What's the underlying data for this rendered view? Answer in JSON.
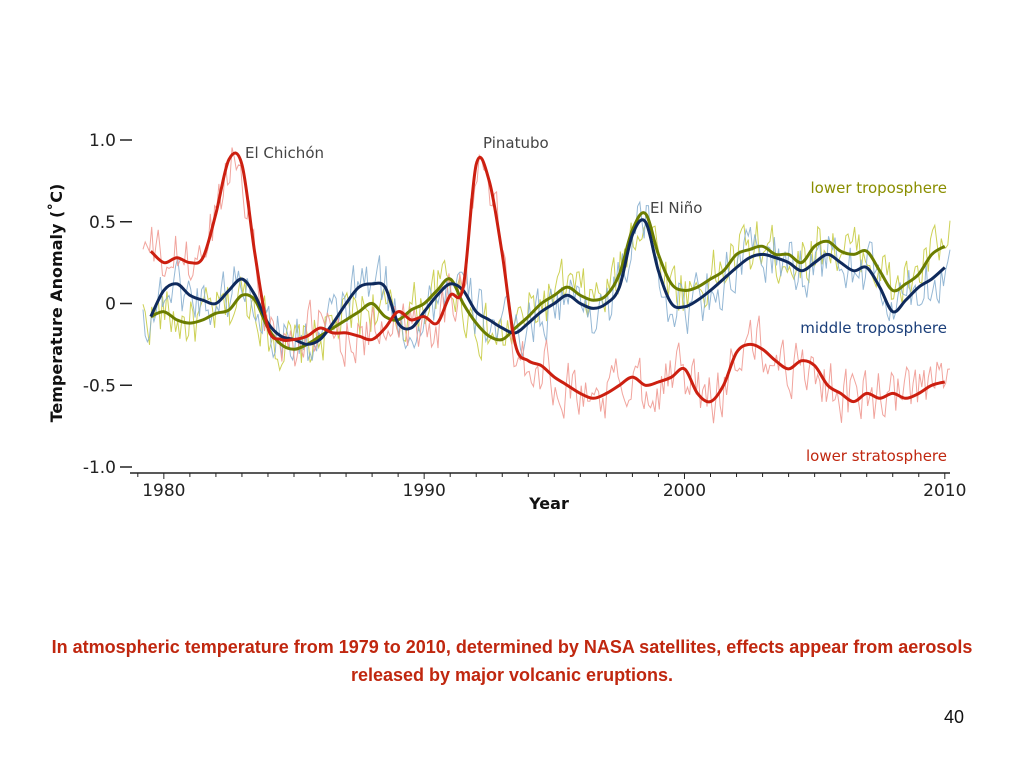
{
  "slide": {
    "caption": "In atmospheric temperature from 1979 to 2010, determined by NASA satellites, effects appear from aerosols released by major volcanic eruptions.",
    "page_number": "40"
  },
  "chart_data": {
    "type": "line",
    "title": "",
    "xlabel": "Year",
    "ylabel": "Temperature Anomaly (˚C)",
    "xlim": [
      1978.7,
      2010.2
    ],
    "ylim": [
      -1.0,
      1.0
    ],
    "x_ticks": [
      1980,
      1990,
      2000,
      2010
    ],
    "y_ticks": [
      {
        "value": 1.0,
        "label": "1.0"
      },
      {
        "value": 0.5,
        "label": "0.5"
      },
      {
        "value": 0,
        "label": "0"
      },
      {
        "value": -0.5,
        "label": "-0.5"
      },
      {
        "value": -1.0,
        "label": "-1.0"
      }
    ],
    "grid": false,
    "annotations": [
      {
        "text": "El Chichón",
        "x": 1982.3,
        "y": 0.93
      },
      {
        "text": "Pinatubo",
        "x": 1991.2,
        "y": 0.95
      },
      {
        "text": "El Niño",
        "x": 1998.7,
        "y": 0.57
      }
    ],
    "series": [
      {
        "name": "lower troposphere",
        "color": "#6b7d00",
        "raw_color": "#c8cc44",
        "label_color": "#8a8e00",
        "x": [
          1979.5,
          1980.0,
          1980.5,
          1981.0,
          1981.5,
          1982.0,
          1982.5,
          1983.0,
          1983.5,
          1984.0,
          1984.5,
          1985.0,
          1985.5,
          1986.0,
          1986.5,
          1987.0,
          1987.5,
          1988.0,
          1988.5,
          1989.0,
          1989.5,
          1990.0,
          1990.5,
          1991.0,
          1991.5,
          1992.0,
          1992.5,
          1993.0,
          1993.5,
          1994.0,
          1994.5,
          1995.0,
          1995.5,
          1996.0,
          1996.5,
          1997.0,
          1997.5,
          1998.0,
          1998.5,
          1999.0,
          1999.5,
          2000.0,
          2000.5,
          2001.0,
          2001.5,
          2002.0,
          2002.5,
          2003.0,
          2003.5,
          2004.0,
          2004.5,
          2005.0,
          2005.5,
          2006.0,
          2006.5,
          2007.0,
          2007.5,
          2008.0,
          2008.5,
          2009.0,
          2009.5,
          2010.0
        ],
        "values": [
          -0.08,
          -0.05,
          -0.1,
          -0.12,
          -0.1,
          -0.06,
          -0.04,
          0.05,
          0.02,
          -0.15,
          -0.25,
          -0.28,
          -0.25,
          -0.2,
          -0.15,
          -0.1,
          -0.05,
          0.0,
          -0.08,
          -0.1,
          -0.04,
          0.0,
          0.08,
          0.15,
          0.0,
          -0.12,
          -0.2,
          -0.22,
          -0.15,
          -0.08,
          0.0,
          0.05,
          0.1,
          0.05,
          0.02,
          0.05,
          0.18,
          0.45,
          0.55,
          0.3,
          0.12,
          0.08,
          0.1,
          0.15,
          0.2,
          0.3,
          0.33,
          0.35,
          0.3,
          0.3,
          0.25,
          0.35,
          0.38,
          0.32,
          0.3,
          0.32,
          0.2,
          0.08,
          0.12,
          0.18,
          0.3,
          0.35
        ]
      },
      {
        "name": "middle troposphere",
        "color": "#0f2a5c",
        "raw_color": "#8ab0d0",
        "label_color": "#1b3f7a",
        "x": [
          1979.5,
          1980.0,
          1980.5,
          1981.0,
          1981.5,
          1982.0,
          1982.5,
          1983.0,
          1983.5,
          1984.0,
          1984.5,
          1985.0,
          1985.5,
          1986.0,
          1986.5,
          1987.0,
          1987.5,
          1988.0,
          1988.5,
          1989.0,
          1989.5,
          1990.0,
          1990.5,
          1991.0,
          1991.5,
          1992.0,
          1992.5,
          1993.0,
          1993.5,
          1994.0,
          1994.5,
          1995.0,
          1995.5,
          1996.0,
          1996.5,
          1997.0,
          1997.5,
          1998.0,
          1998.5,
          1999.0,
          1999.5,
          2000.0,
          2000.5,
          2001.0,
          2001.5,
          2002.0,
          2002.5,
          2003.0,
          2003.5,
          2004.0,
          2004.5,
          2005.0,
          2005.5,
          2006.0,
          2006.5,
          2007.0,
          2007.5,
          2008.0,
          2008.5,
          2009.0,
          2009.5,
          2010.0
        ],
        "values": [
          -0.08,
          0.08,
          0.12,
          0.05,
          0.02,
          0.0,
          0.08,
          0.15,
          0.05,
          -0.12,
          -0.2,
          -0.22,
          -0.25,
          -0.22,
          -0.12,
          0.0,
          0.1,
          0.12,
          0.1,
          -0.12,
          -0.15,
          -0.05,
          0.05,
          0.12,
          0.08,
          -0.05,
          -0.1,
          -0.15,
          -0.18,
          -0.12,
          -0.05,
          0.0,
          0.05,
          0.0,
          -0.03,
          0.0,
          0.1,
          0.42,
          0.5,
          0.2,
          0.0,
          -0.02,
          0.02,
          0.08,
          0.15,
          0.22,
          0.28,
          0.3,
          0.28,
          0.25,
          0.2,
          0.25,
          0.3,
          0.25,
          0.2,
          0.22,
          0.1,
          -0.05,
          0.02,
          0.1,
          0.15,
          0.22
        ]
      },
      {
        "name": "lower stratosphere",
        "color": "#cc1f10",
        "raw_color": "#f09a92",
        "label_color": "#c0270f",
        "x": [
          1979.5,
          1980.0,
          1980.5,
          1981.0,
          1981.5,
          1982.0,
          1982.5,
          1983.0,
          1983.5,
          1984.0,
          1984.5,
          1985.0,
          1985.5,
          1986.0,
          1986.5,
          1987.0,
          1987.5,
          1988.0,
          1988.5,
          1989.0,
          1989.5,
          1990.0,
          1990.5,
          1991.0,
          1991.5,
          1992.0,
          1992.5,
          1993.0,
          1993.5,
          1994.0,
          1994.5,
          1995.0,
          1995.5,
          1996.0,
          1996.5,
          1997.0,
          1997.5,
          1998.0,
          1998.5,
          1999.0,
          1999.5,
          2000.0,
          2000.5,
          2001.0,
          2001.5,
          2002.0,
          2002.5,
          2003.0,
          2003.5,
          2004.0,
          2004.5,
          2005.0,
          2005.5,
          2006.0,
          2006.5,
          2007.0,
          2007.5,
          2008.0,
          2008.5,
          2009.0,
          2009.5,
          2010.0
        ],
        "values": [
          0.32,
          0.25,
          0.28,
          0.25,
          0.28,
          0.55,
          0.88,
          0.85,
          0.3,
          -0.15,
          -0.22,
          -0.22,
          -0.2,
          -0.15,
          -0.18,
          -0.18,
          -0.2,
          -0.22,
          -0.15,
          -0.05,
          -0.1,
          -0.08,
          -0.12,
          0.05,
          0.1,
          0.85,
          0.75,
          0.3,
          -0.25,
          -0.35,
          -0.38,
          -0.45,
          -0.5,
          -0.55,
          -0.58,
          -0.55,
          -0.5,
          -0.45,
          -0.5,
          -0.48,
          -0.45,
          -0.4,
          -0.55,
          -0.6,
          -0.5,
          -0.3,
          -0.25,
          -0.28,
          -0.35,
          -0.4,
          -0.35,
          -0.38,
          -0.5,
          -0.55,
          -0.6,
          -0.55,
          -0.58,
          -0.55,
          -0.58,
          -0.55,
          -0.5,
          -0.48
        ]
      }
    ]
  }
}
